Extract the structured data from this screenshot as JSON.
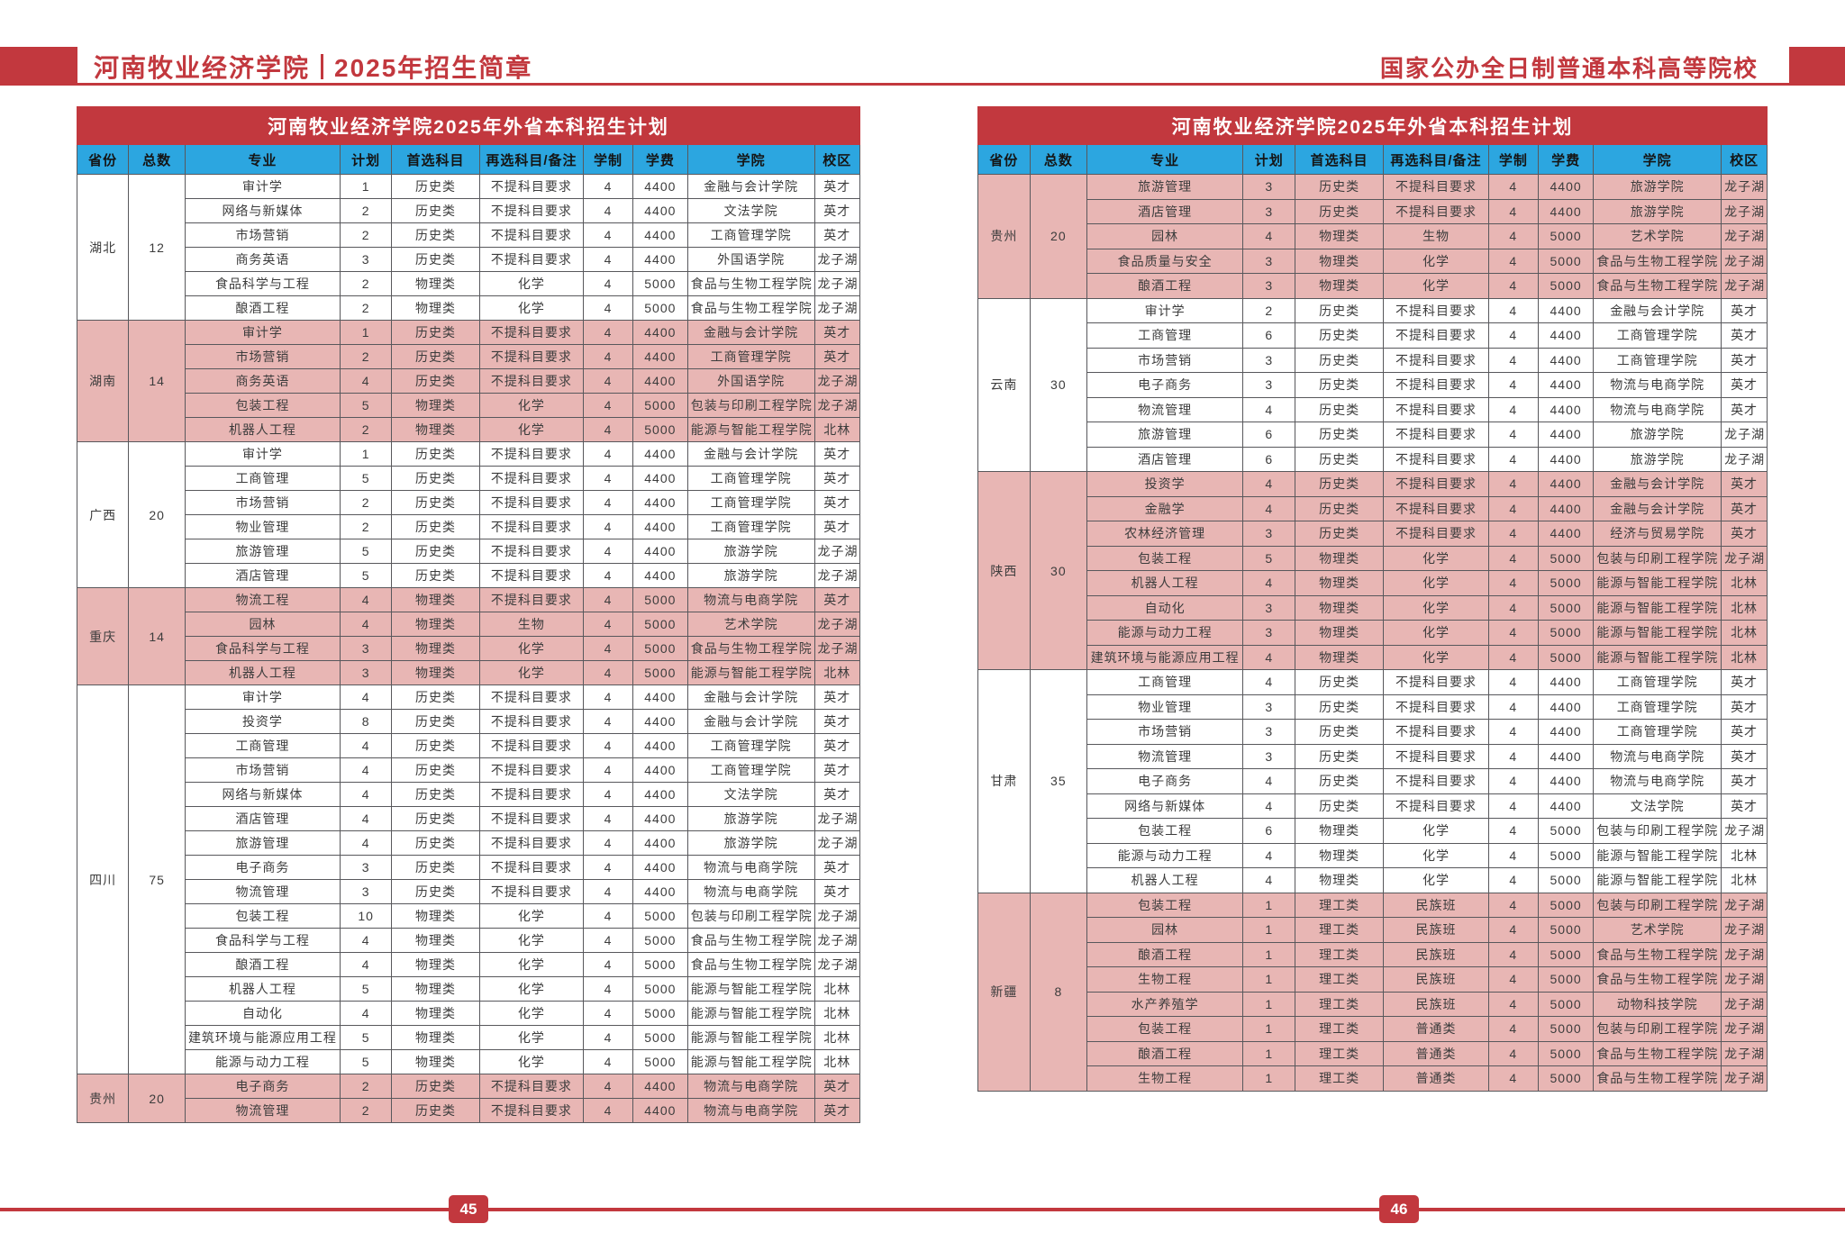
{
  "header": {
    "school_name": "河南牧业经济学院",
    "brochure_title": "2025年招生简章",
    "right_slogan": "国家公办全日制普通本科高等院校"
  },
  "footer": {
    "left_page": "45",
    "right_page": "46"
  },
  "colors": {
    "red": "#c2383e",
    "blue": "#2ca6e0",
    "pink": "#e8b6b4"
  },
  "table_title": "河南牧业经济学院2025年外省本科招生计划",
  "columns": [
    "省份",
    "总数",
    "专业",
    "计划",
    "首选科目",
    "再选科目/备注",
    "学制",
    "学费",
    "学院",
    "校区"
  ],
  "left_table": {
    "provinces": [
      {
        "name": "湖北",
        "total": "12",
        "shaded": false,
        "rows": [
          [
            "审计学",
            "1",
            "历史类",
            "不提科目要求",
            "4",
            "4400",
            "金融与会计学院",
            "英才"
          ],
          [
            "网络与新媒体",
            "2",
            "历史类",
            "不提科目要求",
            "4",
            "4400",
            "文法学院",
            "英才"
          ],
          [
            "市场营销",
            "2",
            "历史类",
            "不提科目要求",
            "4",
            "4400",
            "工商管理学院",
            "英才"
          ],
          [
            "商务英语",
            "3",
            "历史类",
            "不提科目要求",
            "4",
            "4400",
            "外国语学院",
            "龙子湖"
          ],
          [
            "食品科学与工程",
            "2",
            "物理类",
            "化学",
            "4",
            "5000",
            "食品与生物工程学院",
            "龙子湖"
          ],
          [
            "酿酒工程",
            "2",
            "物理类",
            "化学",
            "4",
            "5000",
            "食品与生物工程学院",
            "龙子湖"
          ]
        ]
      },
      {
        "name": "湖南",
        "total": "14",
        "shaded": true,
        "rows": [
          [
            "审计学",
            "1",
            "历史类",
            "不提科目要求",
            "4",
            "4400",
            "金融与会计学院",
            "英才"
          ],
          [
            "市场营销",
            "2",
            "历史类",
            "不提科目要求",
            "4",
            "4400",
            "工商管理学院",
            "英才"
          ],
          [
            "商务英语",
            "4",
            "历史类",
            "不提科目要求",
            "4",
            "4400",
            "外国语学院",
            "龙子湖"
          ],
          [
            "包装工程",
            "5",
            "物理类",
            "化学",
            "4",
            "5000",
            "包装与印刷工程学院",
            "龙子湖"
          ],
          [
            "机器人工程",
            "2",
            "物理类",
            "化学",
            "4",
            "5000",
            "能源与智能工程学院",
            "北林"
          ]
        ]
      },
      {
        "name": "广西",
        "total": "20",
        "shaded": false,
        "rows": [
          [
            "审计学",
            "1",
            "历史类",
            "不提科目要求",
            "4",
            "4400",
            "金融与会计学院",
            "英才"
          ],
          [
            "工商管理",
            "5",
            "历史类",
            "不提科目要求",
            "4",
            "4400",
            "工商管理学院",
            "英才"
          ],
          [
            "市场营销",
            "2",
            "历史类",
            "不提科目要求",
            "4",
            "4400",
            "工商管理学院",
            "英才"
          ],
          [
            "物业管理",
            "2",
            "历史类",
            "不提科目要求",
            "4",
            "4400",
            "工商管理学院",
            "英才"
          ],
          [
            "旅游管理",
            "5",
            "历史类",
            "不提科目要求",
            "4",
            "4400",
            "旅游学院",
            "龙子湖"
          ],
          [
            "酒店管理",
            "5",
            "历史类",
            "不提科目要求",
            "4",
            "4400",
            "旅游学院",
            "龙子湖"
          ]
        ]
      },
      {
        "name": "重庆",
        "total": "14",
        "shaded": true,
        "rows": [
          [
            "物流工程",
            "4",
            "物理类",
            "不提科目要求",
            "4",
            "5000",
            "物流与电商学院",
            "英才"
          ],
          [
            "园林",
            "4",
            "物理类",
            "生物",
            "4",
            "5000",
            "艺术学院",
            "龙子湖"
          ],
          [
            "食品科学与工程",
            "3",
            "物理类",
            "化学",
            "4",
            "5000",
            "食品与生物工程学院",
            "龙子湖"
          ],
          [
            "机器人工程",
            "3",
            "物理类",
            "化学",
            "4",
            "5000",
            "能源与智能工程学院",
            "北林"
          ]
        ]
      },
      {
        "name": "四川",
        "total": "75",
        "shaded": false,
        "rows": [
          [
            "审计学",
            "4",
            "历史类",
            "不提科目要求",
            "4",
            "4400",
            "金融与会计学院",
            "英才"
          ],
          [
            "投资学",
            "8",
            "历史类",
            "不提科目要求",
            "4",
            "4400",
            "金融与会计学院",
            "英才"
          ],
          [
            "工商管理",
            "4",
            "历史类",
            "不提科目要求",
            "4",
            "4400",
            "工商管理学院",
            "英才"
          ],
          [
            "市场营销",
            "4",
            "历史类",
            "不提科目要求",
            "4",
            "4400",
            "工商管理学院",
            "英才"
          ],
          [
            "网络与新媒体",
            "4",
            "历史类",
            "不提科目要求",
            "4",
            "4400",
            "文法学院",
            "英才"
          ],
          [
            "酒店管理",
            "4",
            "历史类",
            "不提科目要求",
            "4",
            "4400",
            "旅游学院",
            "龙子湖"
          ],
          [
            "旅游管理",
            "4",
            "历史类",
            "不提科目要求",
            "4",
            "4400",
            "旅游学院",
            "龙子湖"
          ],
          [
            "电子商务",
            "3",
            "历史类",
            "不提科目要求",
            "4",
            "4400",
            "物流与电商学院",
            "英才"
          ],
          [
            "物流管理",
            "3",
            "历史类",
            "不提科目要求",
            "4",
            "4400",
            "物流与电商学院",
            "英才"
          ],
          [
            "包装工程",
            "10",
            "物理类",
            "化学",
            "4",
            "5000",
            "包装与印刷工程学院",
            "龙子湖"
          ],
          [
            "食品科学与工程",
            "4",
            "物理类",
            "化学",
            "4",
            "5000",
            "食品与生物工程学院",
            "龙子湖"
          ],
          [
            "酿酒工程",
            "4",
            "物理类",
            "化学",
            "4",
            "5000",
            "食品与生物工程学院",
            "龙子湖"
          ],
          [
            "机器人工程",
            "5",
            "物理类",
            "化学",
            "4",
            "5000",
            "能源与智能工程学院",
            "北林"
          ],
          [
            "自动化",
            "4",
            "物理类",
            "化学",
            "4",
            "5000",
            "能源与智能工程学院",
            "北林"
          ],
          [
            "建筑环境与能源应用工程",
            "5",
            "物理类",
            "化学",
            "4",
            "5000",
            "能源与智能工程学院",
            "北林"
          ],
          [
            "能源与动力工程",
            "5",
            "物理类",
            "化学",
            "4",
            "5000",
            "能源与智能工程学院",
            "北林"
          ]
        ]
      },
      {
        "name": "贵州",
        "total": "20",
        "shaded": true,
        "rows": [
          [
            "电子商务",
            "2",
            "历史类",
            "不提科目要求",
            "4",
            "4400",
            "物流与电商学院",
            "英才"
          ],
          [
            "物流管理",
            "2",
            "历史类",
            "不提科目要求",
            "4",
            "4400",
            "物流与电商学院",
            "英才"
          ]
        ]
      }
    ]
  },
  "right_table": {
    "provinces": [
      {
        "name": "贵州",
        "total": "20",
        "shaded": true,
        "rows": [
          [
            "旅游管理",
            "3",
            "历史类",
            "不提科目要求",
            "4",
            "4400",
            "旅游学院",
            "龙子湖"
          ],
          [
            "酒店管理",
            "3",
            "历史类",
            "不提科目要求",
            "4",
            "4400",
            "旅游学院",
            "龙子湖"
          ],
          [
            "园林",
            "4",
            "物理类",
            "生物",
            "4",
            "5000",
            "艺术学院",
            "龙子湖"
          ],
          [
            "食品质量与安全",
            "3",
            "物理类",
            "化学",
            "4",
            "5000",
            "食品与生物工程学院",
            "龙子湖"
          ],
          [
            "酿酒工程",
            "3",
            "物理类",
            "化学",
            "4",
            "5000",
            "食品与生物工程学院",
            "龙子湖"
          ]
        ]
      },
      {
        "name": "云南",
        "total": "30",
        "shaded": false,
        "rows": [
          [
            "审计学",
            "2",
            "历史类",
            "不提科目要求",
            "4",
            "4400",
            "金融与会计学院",
            "英才"
          ],
          [
            "工商管理",
            "6",
            "历史类",
            "不提科目要求",
            "4",
            "4400",
            "工商管理学院",
            "英才"
          ],
          [
            "市场营销",
            "3",
            "历史类",
            "不提科目要求",
            "4",
            "4400",
            "工商管理学院",
            "英才"
          ],
          [
            "电子商务",
            "3",
            "历史类",
            "不提科目要求",
            "4",
            "4400",
            "物流与电商学院",
            "英才"
          ],
          [
            "物流管理",
            "4",
            "历史类",
            "不提科目要求",
            "4",
            "4400",
            "物流与电商学院",
            "英才"
          ],
          [
            "旅游管理",
            "6",
            "历史类",
            "不提科目要求",
            "4",
            "4400",
            "旅游学院",
            "龙子湖"
          ],
          [
            "酒店管理",
            "6",
            "历史类",
            "不提科目要求",
            "4",
            "4400",
            "旅游学院",
            "龙子湖"
          ]
        ]
      },
      {
        "name": "陕西",
        "total": "30",
        "shaded": true,
        "rows": [
          [
            "投资学",
            "4",
            "历史类",
            "不提科目要求",
            "4",
            "4400",
            "金融与会计学院",
            "英才"
          ],
          [
            "金融学",
            "4",
            "历史类",
            "不提科目要求",
            "4",
            "4400",
            "金融与会计学院",
            "英才"
          ],
          [
            "农林经济管理",
            "3",
            "历史类",
            "不提科目要求",
            "4",
            "4400",
            "经济与贸易学院",
            "英才"
          ],
          [
            "包装工程",
            "5",
            "物理类",
            "化学",
            "4",
            "5000",
            "包装与印刷工程学院",
            "龙子湖"
          ],
          [
            "机器人工程",
            "4",
            "物理类",
            "化学",
            "4",
            "5000",
            "能源与智能工程学院",
            "北林"
          ],
          [
            "自动化",
            "3",
            "物理类",
            "化学",
            "4",
            "5000",
            "能源与智能工程学院",
            "北林"
          ],
          [
            "能源与动力工程",
            "3",
            "物理类",
            "化学",
            "4",
            "5000",
            "能源与智能工程学院",
            "北林"
          ],
          [
            "建筑环境与能源应用工程",
            "4",
            "物理类",
            "化学",
            "4",
            "5000",
            "能源与智能工程学院",
            "北林"
          ]
        ]
      },
      {
        "name": "甘肃",
        "total": "35",
        "shaded": false,
        "rows": [
          [
            "工商管理",
            "4",
            "历史类",
            "不提科目要求",
            "4",
            "4400",
            "工商管理学院",
            "英才"
          ],
          [
            "物业管理",
            "3",
            "历史类",
            "不提科目要求",
            "4",
            "4400",
            "工商管理学院",
            "英才"
          ],
          [
            "市场营销",
            "3",
            "历史类",
            "不提科目要求",
            "4",
            "4400",
            "工商管理学院",
            "英才"
          ],
          [
            "物流管理",
            "3",
            "历史类",
            "不提科目要求",
            "4",
            "4400",
            "物流与电商学院",
            "英才"
          ],
          [
            "电子商务",
            "4",
            "历史类",
            "不提科目要求",
            "4",
            "4400",
            "物流与电商学院",
            "英才"
          ],
          [
            "网络与新媒体",
            "4",
            "历史类",
            "不提科目要求",
            "4",
            "4400",
            "文法学院",
            "英才"
          ],
          [
            "包装工程",
            "6",
            "物理类",
            "化学",
            "4",
            "5000",
            "包装与印刷工程学院",
            "龙子湖"
          ],
          [
            "能源与动力工程",
            "4",
            "物理类",
            "化学",
            "4",
            "5000",
            "能源与智能工程学院",
            "北林"
          ],
          [
            "机器人工程",
            "4",
            "物理类",
            "化学",
            "4",
            "5000",
            "能源与智能工程学院",
            "北林"
          ]
        ]
      },
      {
        "name": "新疆",
        "total": "8",
        "shaded": true,
        "rows": [
          [
            "包装工程",
            "1",
            "理工类",
            "民族班",
            "4",
            "5000",
            "包装与印刷工程学院",
            "龙子湖"
          ],
          [
            "园林",
            "1",
            "理工类",
            "民族班",
            "4",
            "5000",
            "艺术学院",
            "龙子湖"
          ],
          [
            "酿酒工程",
            "1",
            "理工类",
            "民族班",
            "4",
            "5000",
            "食品与生物工程学院",
            "龙子湖"
          ],
          [
            "生物工程",
            "1",
            "理工类",
            "民族班",
            "4",
            "5000",
            "食品与生物工程学院",
            "龙子湖"
          ],
          [
            "水产养殖学",
            "1",
            "理工类",
            "民族班",
            "4",
            "5000",
            "动物科技学院",
            "龙子湖"
          ],
          [
            "包装工程",
            "1",
            "理工类",
            "普通类",
            "4",
            "5000",
            "包装与印刷工程学院",
            "龙子湖"
          ],
          [
            "酿酒工程",
            "1",
            "理工类",
            "普通类",
            "4",
            "5000",
            "食品与生物工程学院",
            "龙子湖"
          ],
          [
            "生物工程",
            "1",
            "理工类",
            "普通类",
            "4",
            "5000",
            "食品与生物工程学院",
            "龙子湖"
          ]
        ]
      }
    ]
  }
}
